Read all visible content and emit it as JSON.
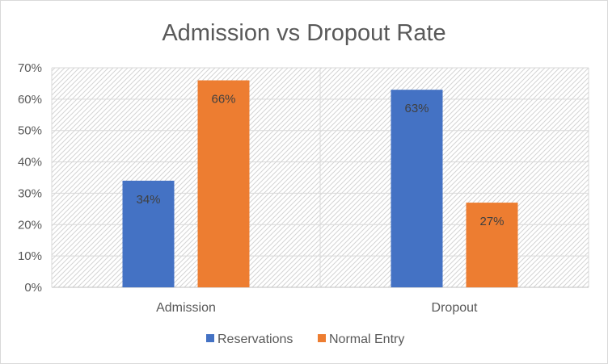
{
  "chart_data": {
    "type": "bar",
    "title": "Admission vs Dropout Rate",
    "categories": [
      "Admission",
      "Dropout"
    ],
    "series": [
      {
        "name": "Reservations",
        "values": [
          34,
          63
        ],
        "labels": [
          "34%",
          "63%"
        ],
        "color": "#4472C4"
      },
      {
        "name": "Normal Entry",
        "values": [
          66,
          27
        ],
        "labels": [
          "66%",
          "27%"
        ],
        "color": "#ED7D31"
      }
    ],
    "ylim": [
      0,
      70
    ],
    "yticks": [
      "0%",
      "10%",
      "20%",
      "30%",
      "40%",
      "50%",
      "60%",
      "70%"
    ],
    "grid": true,
    "legend": "bottom"
  }
}
